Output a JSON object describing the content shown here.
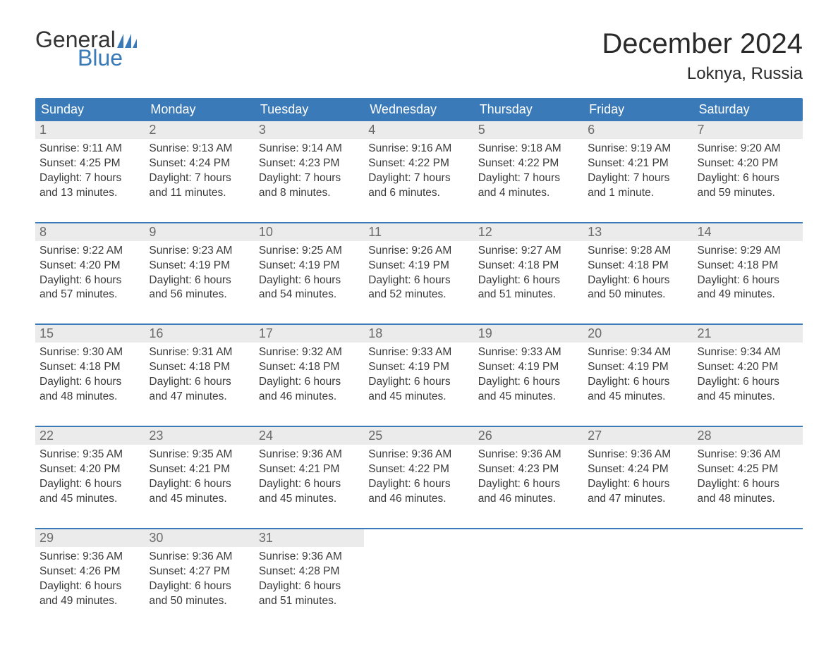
{
  "brand": {
    "text1": "General",
    "text2": "Blue",
    "color_dark": "#333333",
    "color_blue": "#3a7ab8"
  },
  "title": "December 2024",
  "location": "Loknya, Russia",
  "colors": {
    "header_bg": "#3a7ab8",
    "header_text": "#ffffff",
    "daynum_bg": "#ebebeb",
    "daynum_text": "#6a6a6a",
    "body_text": "#3a3a3a",
    "week_border": "#3a7ab8",
    "page_bg": "#ffffff"
  },
  "day_names": [
    "Sunday",
    "Monday",
    "Tuesday",
    "Wednesday",
    "Thursday",
    "Friday",
    "Saturday"
  ],
  "labels": {
    "sunrise": "Sunrise:",
    "sunset": "Sunset:",
    "daylight": "Daylight:"
  },
  "weeks": [
    [
      {
        "n": "1",
        "sunrise": "9:11 AM",
        "sunset": "4:25 PM",
        "d1": "7 hours",
        "d2": "and 13 minutes."
      },
      {
        "n": "2",
        "sunrise": "9:13 AM",
        "sunset": "4:24 PM",
        "d1": "7 hours",
        "d2": "and 11 minutes."
      },
      {
        "n": "3",
        "sunrise": "9:14 AM",
        "sunset": "4:23 PM",
        "d1": "7 hours",
        "d2": "and 8 minutes."
      },
      {
        "n": "4",
        "sunrise": "9:16 AM",
        "sunset": "4:22 PM",
        "d1": "7 hours",
        "d2": "and 6 minutes."
      },
      {
        "n": "5",
        "sunrise": "9:18 AM",
        "sunset": "4:22 PM",
        "d1": "7 hours",
        "d2": "and 4 minutes."
      },
      {
        "n": "6",
        "sunrise": "9:19 AM",
        "sunset": "4:21 PM",
        "d1": "7 hours",
        "d2": "and 1 minute."
      },
      {
        "n": "7",
        "sunrise": "9:20 AM",
        "sunset": "4:20 PM",
        "d1": "6 hours",
        "d2": "and 59 minutes."
      }
    ],
    [
      {
        "n": "8",
        "sunrise": "9:22 AM",
        "sunset": "4:20 PM",
        "d1": "6 hours",
        "d2": "and 57 minutes."
      },
      {
        "n": "9",
        "sunrise": "9:23 AM",
        "sunset": "4:19 PM",
        "d1": "6 hours",
        "d2": "and 56 minutes."
      },
      {
        "n": "10",
        "sunrise": "9:25 AM",
        "sunset": "4:19 PM",
        "d1": "6 hours",
        "d2": "and 54 minutes."
      },
      {
        "n": "11",
        "sunrise": "9:26 AM",
        "sunset": "4:19 PM",
        "d1": "6 hours",
        "d2": "and 52 minutes."
      },
      {
        "n": "12",
        "sunrise": "9:27 AM",
        "sunset": "4:18 PM",
        "d1": "6 hours",
        "d2": "and 51 minutes."
      },
      {
        "n": "13",
        "sunrise": "9:28 AM",
        "sunset": "4:18 PM",
        "d1": "6 hours",
        "d2": "and 50 minutes."
      },
      {
        "n": "14",
        "sunrise": "9:29 AM",
        "sunset": "4:18 PM",
        "d1": "6 hours",
        "d2": "and 49 minutes."
      }
    ],
    [
      {
        "n": "15",
        "sunrise": "9:30 AM",
        "sunset": "4:18 PM",
        "d1": "6 hours",
        "d2": "and 48 minutes."
      },
      {
        "n": "16",
        "sunrise": "9:31 AM",
        "sunset": "4:18 PM",
        "d1": "6 hours",
        "d2": "and 47 minutes."
      },
      {
        "n": "17",
        "sunrise": "9:32 AM",
        "sunset": "4:18 PM",
        "d1": "6 hours",
        "d2": "and 46 minutes."
      },
      {
        "n": "18",
        "sunrise": "9:33 AM",
        "sunset": "4:19 PM",
        "d1": "6 hours",
        "d2": "and 45 minutes."
      },
      {
        "n": "19",
        "sunrise": "9:33 AM",
        "sunset": "4:19 PM",
        "d1": "6 hours",
        "d2": "and 45 minutes."
      },
      {
        "n": "20",
        "sunrise": "9:34 AM",
        "sunset": "4:19 PM",
        "d1": "6 hours",
        "d2": "and 45 minutes."
      },
      {
        "n": "21",
        "sunrise": "9:34 AM",
        "sunset": "4:20 PM",
        "d1": "6 hours",
        "d2": "and 45 minutes."
      }
    ],
    [
      {
        "n": "22",
        "sunrise": "9:35 AM",
        "sunset": "4:20 PM",
        "d1": "6 hours",
        "d2": "and 45 minutes."
      },
      {
        "n": "23",
        "sunrise": "9:35 AM",
        "sunset": "4:21 PM",
        "d1": "6 hours",
        "d2": "and 45 minutes."
      },
      {
        "n": "24",
        "sunrise": "9:36 AM",
        "sunset": "4:21 PM",
        "d1": "6 hours",
        "d2": "and 45 minutes."
      },
      {
        "n": "25",
        "sunrise": "9:36 AM",
        "sunset": "4:22 PM",
        "d1": "6 hours",
        "d2": "and 46 minutes."
      },
      {
        "n": "26",
        "sunrise": "9:36 AM",
        "sunset": "4:23 PM",
        "d1": "6 hours",
        "d2": "and 46 minutes."
      },
      {
        "n": "27",
        "sunrise": "9:36 AM",
        "sunset": "4:24 PM",
        "d1": "6 hours",
        "d2": "and 47 minutes."
      },
      {
        "n": "28",
        "sunrise": "9:36 AM",
        "sunset": "4:25 PM",
        "d1": "6 hours",
        "d2": "and 48 minutes."
      }
    ],
    [
      {
        "n": "29",
        "sunrise": "9:36 AM",
        "sunset": "4:26 PM",
        "d1": "6 hours",
        "d2": "and 49 minutes."
      },
      {
        "n": "30",
        "sunrise": "9:36 AM",
        "sunset": "4:27 PM",
        "d1": "6 hours",
        "d2": "and 50 minutes."
      },
      {
        "n": "31",
        "sunrise": "9:36 AM",
        "sunset": "4:28 PM",
        "d1": "6 hours",
        "d2": "and 51 minutes."
      },
      null,
      null,
      null,
      null
    ]
  ]
}
